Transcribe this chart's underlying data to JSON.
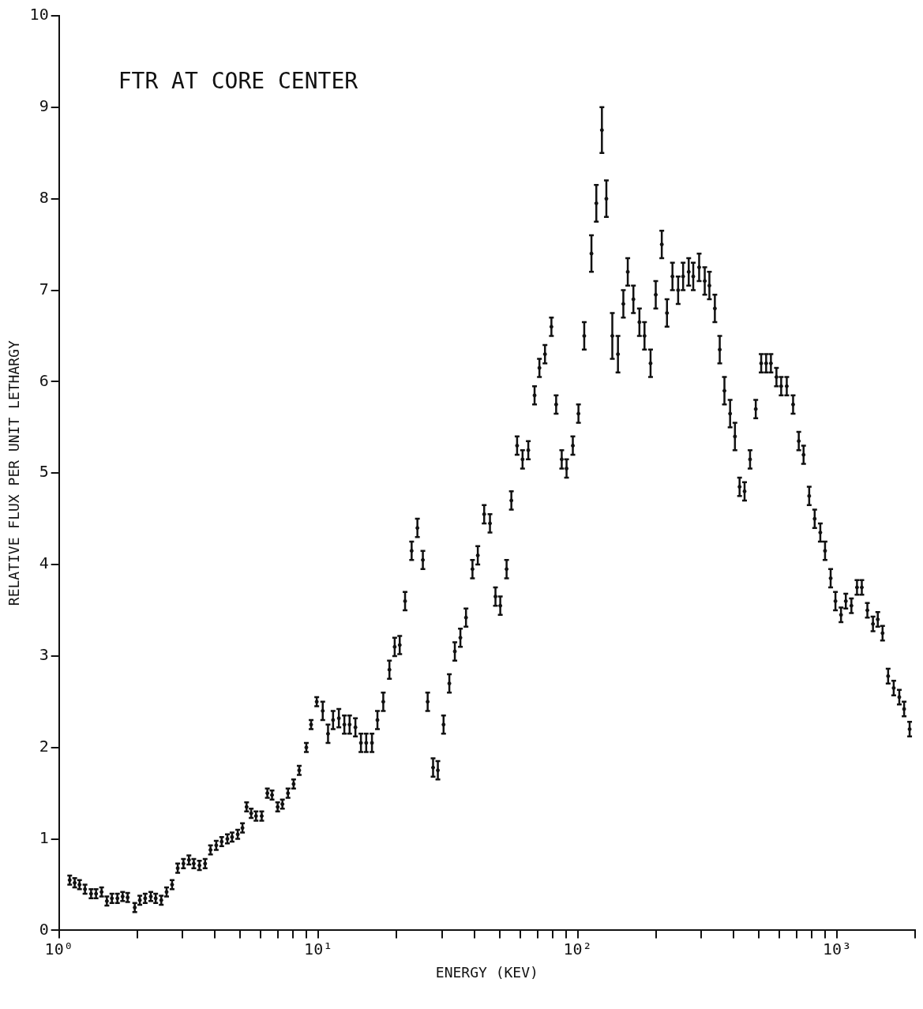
{
  "chart_data": {
    "type": "scatter",
    "xlabel": "ENERGY (KEV)",
    "ylabel": "RELATIVE FLUX PER UNIT LETHARGY",
    "annotations": [
      "FTR AT CORE CENTER"
    ],
    "log": "x",
    "grid": false,
    "xlim": [
      1,
      2000
    ],
    "xticks": [
      {
        "value": 1,
        "label": "10⁰"
      },
      {
        "value": 2,
        "label": null
      },
      {
        "value": 3,
        "label": null
      },
      {
        "value": 4,
        "label": null
      },
      {
        "value": 5,
        "label": null
      },
      {
        "value": 6,
        "label": null
      },
      {
        "value": 7,
        "label": null
      },
      {
        "value": 8,
        "label": null
      },
      {
        "value": 9,
        "label": null
      },
      {
        "value": 10,
        "label": "10¹"
      },
      {
        "value": 20,
        "label": null
      },
      {
        "value": 30,
        "label": null
      },
      {
        "value": 40,
        "label": null
      },
      {
        "value": 50,
        "label": null
      },
      {
        "value": 60,
        "label": null
      },
      {
        "value": 70,
        "label": null
      },
      {
        "value": 80,
        "label": null
      },
      {
        "value": 90,
        "label": null
      },
      {
        "value": 100,
        "label": "10²"
      },
      {
        "value": 200,
        "label": null
      },
      {
        "value": 300,
        "label": null
      },
      {
        "value": 400,
        "label": null
      },
      {
        "value": 500,
        "label": null
      },
      {
        "value": 600,
        "label": null
      },
      {
        "value": 700,
        "label": null
      },
      {
        "value": 800,
        "label": null
      },
      {
        "value": 900,
        "label": null
      },
      {
        "value": 1000,
        "label": "10³"
      },
      {
        "value": 2000,
        "label": null
      }
    ],
    "ylim": [
      0,
      10
    ],
    "yticks": [
      0,
      1,
      2,
      3,
      4,
      5,
      6,
      7,
      8,
      9,
      10
    ],
    "series": [
      {
        "color": "#111111",
        "x": [
          1.1,
          1.15,
          1.2,
          1.26,
          1.33,
          1.39,
          1.46,
          1.53,
          1.6,
          1.68,
          1.76,
          1.84,
          1.96,
          2.05,
          2.15,
          2.26,
          2.36,
          2.48,
          2.6,
          2.73,
          2.87,
          3.02,
          3.17,
          3.31,
          3.48,
          3.66,
          3.84,
          4.04,
          4.24,
          4.46,
          4.65,
          4.89,
          5.1,
          5.29,
          5.51,
          5.75,
          6.05,
          6.36,
          6.63,
          6.97,
          7.27,
          7.64,
          8.03,
          8.44,
          8.99,
          9.38,
          9.86,
          10.4,
          10.9,
          11.4,
          12.0,
          12.6,
          13.2,
          13.9,
          14.6,
          15.3,
          16.1,
          16.9,
          17.8,
          18.8,
          19.7,
          20.6,
          21.6,
          22.9,
          24.1,
          25.3,
          26.4,
          27.7,
          28.9,
          30.4,
          32.0,
          33.6,
          35.3,
          37.1,
          39.3,
          41.2,
          43.6,
          45.9,
          48.2,
          50.3,
          53.2,
          55.5,
          58.4,
          61.3,
          64.5,
          68.2,
          71.2,
          74.8,
          79.2,
          82.6,
          86.8,
          90.6,
          95.8,
          100.7,
          106,
          113,
          118,
          124,
          129,
          136,
          143,
          150,
          156,
          164,
          173,
          181,
          191,
          200,
          211,
          221,
          232,
          244,
          255,
          268,
          279,
          294,
          309,
          322,
          338,
          353,
          368,
          387,
          404,
          421,
          440,
          462,
          486,
          510,
          533,
          556,
          584,
          609,
          640,
          677,
          712,
          743,
          781,
          820,
          862,
          899,
          945,
          986,
          1036,
          1081,
          1136,
          1194,
          1246,
          1309,
          1376,
          1436,
          1498,
          1574,
          1654,
          1738,
          1814,
          1905
        ],
        "values": [
          0.55,
          0.52,
          0.5,
          0.45,
          0.4,
          0.4,
          0.42,
          0.32,
          0.35,
          0.35,
          0.37,
          0.36,
          0.25,
          0.33,
          0.35,
          0.37,
          0.35,
          0.33,
          0.42,
          0.5,
          0.68,
          0.73,
          0.77,
          0.73,
          0.71,
          0.73,
          0.88,
          0.93,
          0.97,
          1.0,
          1.02,
          1.05,
          1.12,
          1.35,
          1.28,
          1.25,
          1.25,
          1.5,
          1.48,
          1.35,
          1.38,
          1.5,
          1.6,
          1.75,
          2.0,
          2.25,
          2.5,
          2.4,
          2.15,
          2.3,
          2.32,
          2.25,
          2.25,
          2.22,
          2.05,
          2.05,
          2.05,
          2.3,
          2.5,
          2.85,
          3.1,
          3.12,
          3.6,
          4.15,
          4.4,
          4.05,
          2.5,
          1.78,
          1.75,
          2.25,
          2.7,
          3.05,
          3.2,
          3.42,
          3.95,
          4.1,
          4.55,
          4.45,
          3.65,
          3.55,
          3.95,
          4.7,
          5.3,
          5.15,
          5.25,
          5.85,
          6.15,
          6.3,
          6.6,
          5.75,
          5.15,
          5.05,
          5.3,
          5.65,
          6.5,
          7.4,
          7.95,
          8.75,
          8.0,
          6.5,
          6.3,
          6.85,
          7.2,
          6.9,
          6.65,
          6.5,
          6.2,
          6.95,
          7.5,
          6.75,
          7.15,
          7.0,
          7.15,
          7.2,
          7.15,
          7.25,
          7.1,
          7.05,
          6.8,
          6.35,
          5.9,
          5.65,
          5.4,
          4.85,
          4.8,
          5.15,
          5.7,
          6.2,
          6.2,
          6.2,
          6.05,
          5.95,
          5.95,
          5.75,
          5.35,
          5.2,
          4.75,
          4.5,
          4.35,
          4.15,
          3.85,
          3.6,
          3.45,
          3.6,
          3.55,
          3.75,
          3.75,
          3.5,
          3.35,
          3.4,
          3.25,
          2.78,
          2.65,
          2.55,
          2.42,
          2.2
        ],
        "errors": [
          0.05,
          0.05,
          0.05,
          0.05,
          0.05,
          0.05,
          0.05,
          0.05,
          0.05,
          0.05,
          0.05,
          0.05,
          0.05,
          0.05,
          0.05,
          0.05,
          0.05,
          0.05,
          0.05,
          0.05,
          0.05,
          0.05,
          0.05,
          0.05,
          0.05,
          0.05,
          0.05,
          0.05,
          0.05,
          0.05,
          0.05,
          0.05,
          0.05,
          0.05,
          0.05,
          0.05,
          0.05,
          0.05,
          0.05,
          0.05,
          0.05,
          0.05,
          0.05,
          0.05,
          0.05,
          0.05,
          0.05,
          0.1,
          0.1,
          0.1,
          0.1,
          0.1,
          0.1,
          0.1,
          0.1,
          0.1,
          0.1,
          0.1,
          0.1,
          0.1,
          0.1,
          0.1,
          0.1,
          0.1,
          0.1,
          0.1,
          0.1,
          0.1,
          0.1,
          0.1,
          0.1,
          0.1,
          0.1,
          0.1,
          0.1,
          0.1,
          0.1,
          0.1,
          0.1,
          0.1,
          0.1,
          0.1,
          0.1,
          0.1,
          0.1,
          0.1,
          0.1,
          0.1,
          0.1,
          0.1,
          0.1,
          0.1,
          0.1,
          0.1,
          0.15,
          0.2,
          0.2,
          0.25,
          0.2,
          0.25,
          0.2,
          0.15,
          0.15,
          0.15,
          0.15,
          0.15,
          0.15,
          0.15,
          0.15,
          0.15,
          0.15,
          0.15,
          0.15,
          0.15,
          0.15,
          0.15,
          0.15,
          0.15,
          0.15,
          0.15,
          0.15,
          0.15,
          0.15,
          0.1,
          0.1,
          0.1,
          0.1,
          0.1,
          0.1,
          0.1,
          0.1,
          0.1,
          0.1,
          0.1,
          0.1,
          0.1,
          0.1,
          0.1,
          0.1,
          0.1,
          0.1,
          0.1,
          0.08,
          0.08,
          0.08,
          0.08,
          0.08,
          0.08,
          0.08,
          0.08,
          0.08,
          0.08,
          0.08,
          0.08,
          0.08,
          0.08
        ]
      }
    ]
  }
}
